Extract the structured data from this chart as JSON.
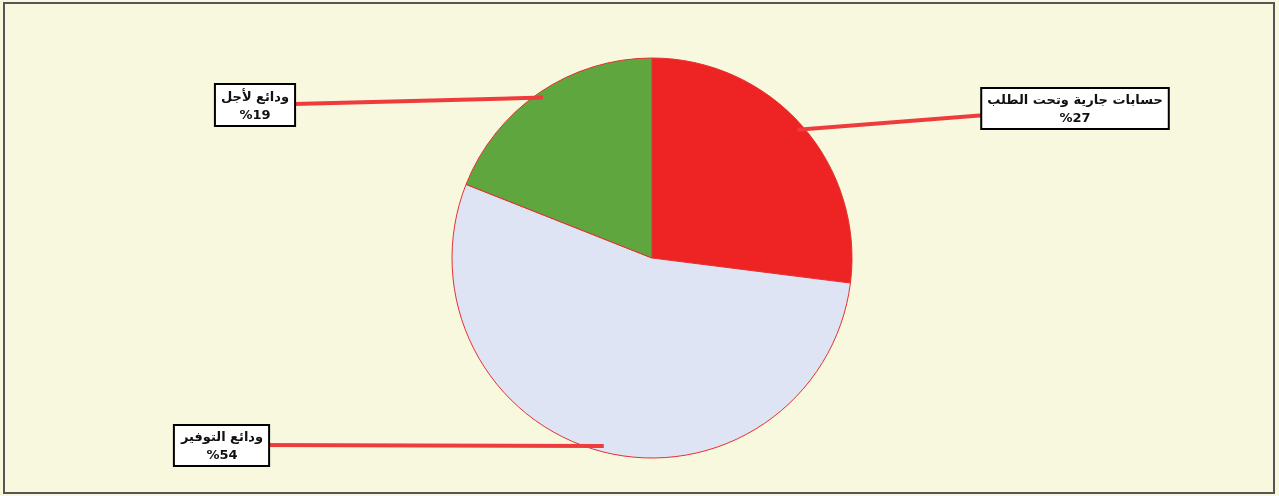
{
  "chart_data": {
    "type": "pie",
    "categories": [
      "حسابات جارية وتحت الطلب",
      "ودائع التوفير",
      "ودائع لأجل"
    ],
    "values": [
      27,
      54,
      19
    ],
    "value_labels": [
      "%27",
      "%54",
      "%19"
    ],
    "colors": [
      "#ee2424",
      "#dfe4f4",
      "#5fa63e"
    ]
  }
}
